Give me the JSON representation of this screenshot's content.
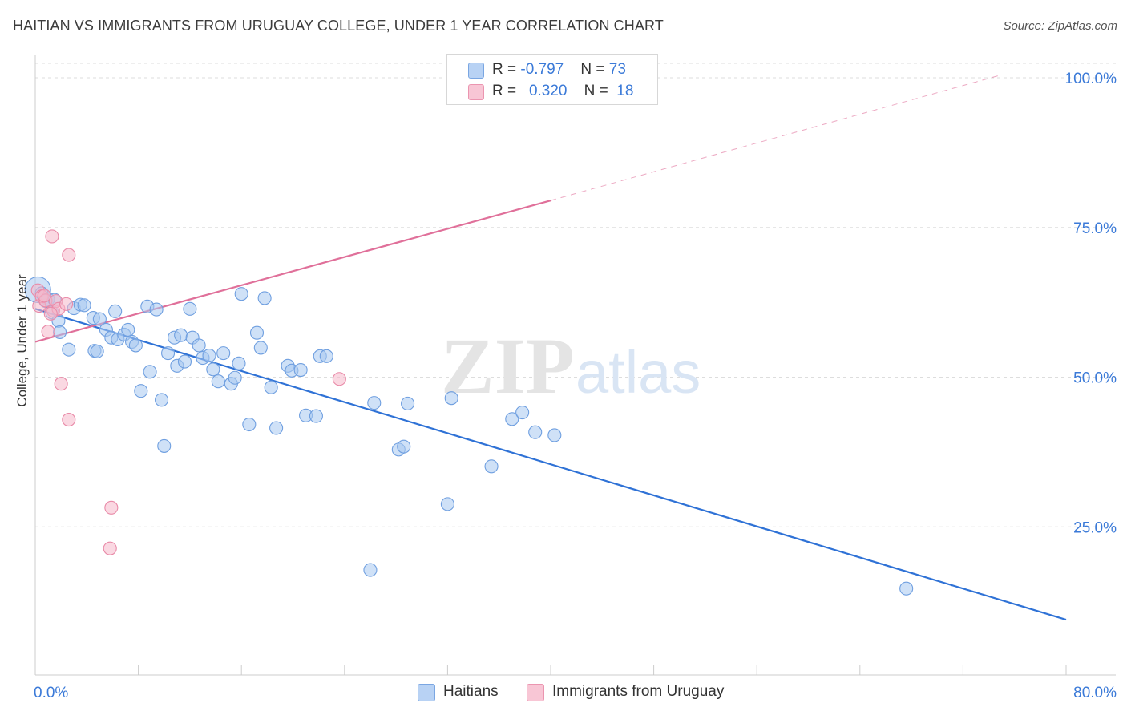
{
  "title": "HAITIAN VS IMMIGRANTS FROM URUGUAY COLLEGE, UNDER 1 YEAR CORRELATION CHART",
  "source": "Source: ZipAtlas.com",
  "watermark": {
    "zip": "ZIP",
    "atlas": "atlas"
  },
  "colors": {
    "blue_fill": "#a8c8f0",
    "blue_stroke": "#6f9fe0",
    "blue_line": "#2f72d6",
    "pink_fill": "#f5b8cb",
    "pink_stroke": "#e98aa8",
    "pink_line": "#e0709a",
    "grid": "#dddddd",
    "axis_text": "#3b7ad8"
  },
  "legend_top": {
    "rows": [
      {
        "r_label": "R = ",
        "r_value": "-0.797",
        "n_label": "N = ",
        "n_value": "73"
      },
      {
        "r_label": "R = ",
        "r_value": "0.320",
        "n_label": "N = ",
        "n_value": "18"
      }
    ]
  },
  "legend_bottom": {
    "items": [
      "Haitians",
      "Immigrants from Uruguay"
    ]
  },
  "chart_data": {
    "type": "scatter",
    "xlabel": "",
    "ylabel": "College, Under 1 year",
    "xlim": [
      0,
      80
    ],
    "ylim": [
      0,
      102
    ],
    "x_tick_labels": [
      {
        "value": 0,
        "label": "0.0%"
      },
      {
        "value": 80,
        "label": "80.0%"
      }
    ],
    "y_tick_labels": [
      {
        "value": 25,
        "label": "25.0%"
      },
      {
        "value": 50,
        "label": "50.0%"
      },
      {
        "value": 75,
        "label": "75.0%"
      },
      {
        "value": 100,
        "label": "100.0%"
      }
    ],
    "series": [
      {
        "name": "Haitians",
        "color": "blue",
        "trend": {
          "x1": 0,
          "y1": 61.4,
          "x2": 80,
          "y2": 9.5
        },
        "points": [
          {
            "x": 0.2,
            "y": 64.6,
            "big": true
          },
          {
            "x": 0.5,
            "y": 64.0
          },
          {
            "x": 1.0,
            "y": 63.0
          },
          {
            "x": 1.3,
            "y": 60.8
          },
          {
            "x": 1.8,
            "y": 59.4
          },
          {
            "x": 1.9,
            "y": 57.5
          },
          {
            "x": 2.6,
            "y": 54.6
          },
          {
            "x": 3.0,
            "y": 61.5
          },
          {
            "x": 3.5,
            "y": 62.1
          },
          {
            "x": 3.8,
            "y": 62.0
          },
          {
            "x": 4.5,
            "y": 59.9
          },
          {
            "x": 4.6,
            "y": 54.4
          },
          {
            "x": 4.8,
            "y": 54.3
          },
          {
            "x": 5.0,
            "y": 59.7
          },
          {
            "x": 5.5,
            "y": 57.9
          },
          {
            "x": 5.9,
            "y": 56.6
          },
          {
            "x": 6.2,
            "y": 61.0
          },
          {
            "x": 6.4,
            "y": 56.3
          },
          {
            "x": 6.9,
            "y": 57.1
          },
          {
            "x": 7.2,
            "y": 57.9
          },
          {
            "x": 7.5,
            "y": 55.9
          },
          {
            "x": 7.8,
            "y": 55.3
          },
          {
            "x": 8.2,
            "y": 47.7
          },
          {
            "x": 8.7,
            "y": 61.8
          },
          {
            "x": 8.9,
            "y": 50.9
          },
          {
            "x": 9.4,
            "y": 61.3
          },
          {
            "x": 9.8,
            "y": 46.2
          },
          {
            "x": 10.0,
            "y": 38.5
          },
          {
            "x": 10.3,
            "y": 54.0
          },
          {
            "x": 10.8,
            "y": 56.6
          },
          {
            "x": 11.0,
            "y": 51.9
          },
          {
            "x": 11.3,
            "y": 57.0
          },
          {
            "x": 11.6,
            "y": 52.6
          },
          {
            "x": 12.0,
            "y": 61.4
          },
          {
            "x": 12.2,
            "y": 56.6
          },
          {
            "x": 12.7,
            "y": 55.3
          },
          {
            "x": 13.0,
            "y": 53.2
          },
          {
            "x": 13.5,
            "y": 53.6
          },
          {
            "x": 13.8,
            "y": 51.3
          },
          {
            "x": 14.2,
            "y": 49.3
          },
          {
            "x": 14.6,
            "y": 54.0
          },
          {
            "x": 15.2,
            "y": 48.9
          },
          {
            "x": 15.5,
            "y": 49.9
          },
          {
            "x": 15.8,
            "y": 52.3
          },
          {
            "x": 16.0,
            "y": 63.9
          },
          {
            "x": 16.6,
            "y": 42.1
          },
          {
            "x": 17.2,
            "y": 57.4
          },
          {
            "x": 17.5,
            "y": 54.9
          },
          {
            "x": 17.8,
            "y": 63.2
          },
          {
            "x": 18.3,
            "y": 48.3
          },
          {
            "x": 18.7,
            "y": 41.5
          },
          {
            "x": 19.6,
            "y": 51.9
          },
          {
            "x": 19.9,
            "y": 51.1
          },
          {
            "x": 20.6,
            "y": 51.2
          },
          {
            "x": 21.0,
            "y": 43.6
          },
          {
            "x": 21.8,
            "y": 43.5
          },
          {
            "x": 22.1,
            "y": 53.5
          },
          {
            "x": 22.6,
            "y": 53.5
          },
          {
            "x": 26.3,
            "y": 45.7
          },
          {
            "x": 28.2,
            "y": 37.9
          },
          {
            "x": 28.6,
            "y": 38.4
          },
          {
            "x": 28.9,
            "y": 45.6
          },
          {
            "x": 32.0,
            "y": 28.8
          },
          {
            "x": 32.3,
            "y": 46.5
          },
          {
            "x": 35.4,
            "y": 35.1
          },
          {
            "x": 37.0,
            "y": 43.0
          },
          {
            "x": 37.8,
            "y": 44.1
          },
          {
            "x": 38.8,
            "y": 40.8
          },
          {
            "x": 40.3,
            "y": 40.3
          },
          {
            "x": 26.0,
            "y": 17.8
          },
          {
            "x": 67.6,
            "y": 14.7
          },
          {
            "x": 0.8,
            "y": 62.7
          },
          {
            "x": 1.5,
            "y": 62.9
          }
        ]
      },
      {
        "name": "Immigrants from Uruguay",
        "color": "pink",
        "trend": {
          "x1": 0,
          "y1": 55.9,
          "x2": 40,
          "y2": 79.5
        },
        "trend_ext": {
          "x1": 40,
          "y1": 79.5,
          "x2": 75,
          "y2": 100.5
        },
        "points": [
          {
            "x": 0.2,
            "y": 64.5
          },
          {
            "x": 0.3,
            "y": 61.9
          },
          {
            "x": 0.5,
            "y": 63.5
          },
          {
            "x": 0.8,
            "y": 62.8
          },
          {
            "x": 1.0,
            "y": 57.6
          },
          {
            "x": 1.3,
            "y": 73.5
          },
          {
            "x": 1.4,
            "y": 61.1
          },
          {
            "x": 1.6,
            "y": 62.7
          },
          {
            "x": 1.8,
            "y": 61.4
          },
          {
            "x": 2.0,
            "y": 48.9
          },
          {
            "x": 2.4,
            "y": 62.2
          },
          {
            "x": 2.6,
            "y": 70.4
          },
          {
            "x": 2.6,
            "y": 42.9
          },
          {
            "x": 5.9,
            "y": 28.2
          },
          {
            "x": 5.8,
            "y": 21.4
          },
          {
            "x": 23.6,
            "y": 49.7
          },
          {
            "x": 0.7,
            "y": 63.6
          },
          {
            "x": 1.2,
            "y": 60.6
          }
        ]
      }
    ]
  }
}
